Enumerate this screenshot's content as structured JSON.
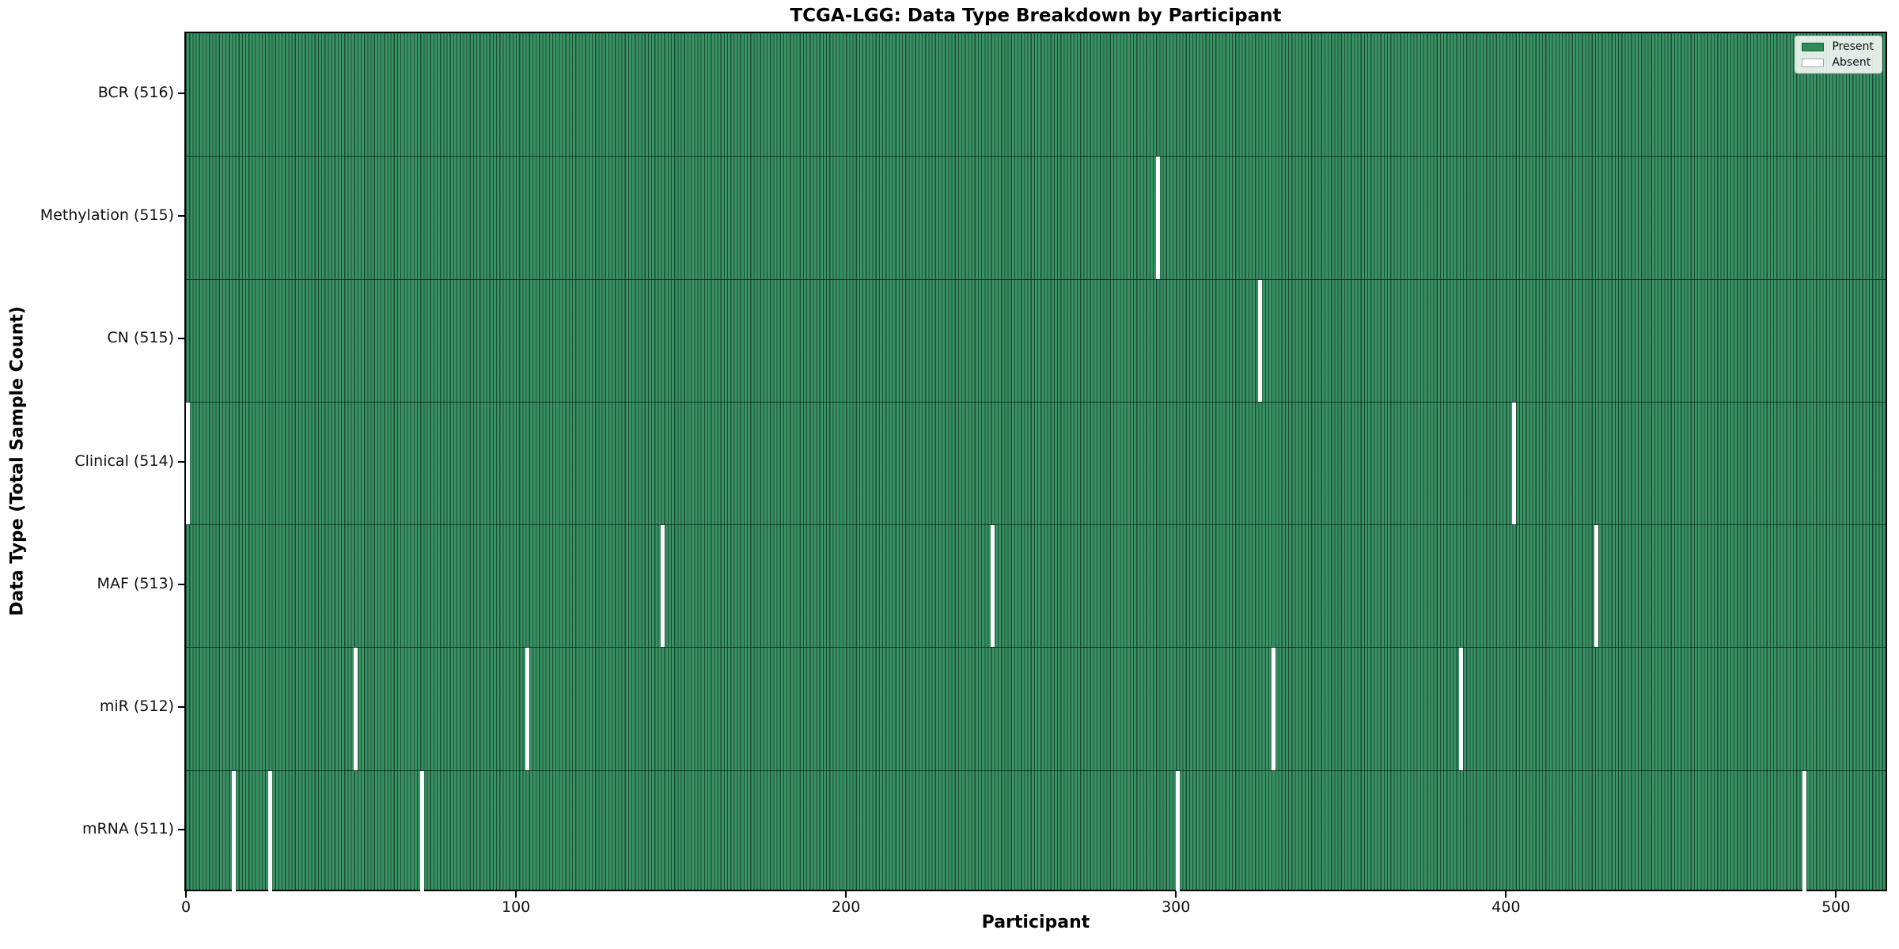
{
  "chart_data": {
    "type": "heatmap",
    "title": "TCGA-LGG: Data Type Breakdown by Participant",
    "xlabel": "Participant",
    "ylabel": "Data Type (Total Sample Count)",
    "n_participants": 516,
    "x_ticks": [
      0,
      100,
      200,
      300,
      400,
      500
    ],
    "x_range": [
      -0.5,
      515.5
    ],
    "grid": false,
    "legend_position": "upper right",
    "rows": [
      {
        "label": "BCR (516)",
        "present_count": 516,
        "absent_participants": []
      },
      {
        "label": "Methylation (515)",
        "present_count": 515,
        "absent_participants": [
          294
        ]
      },
      {
        "label": "CN (515)",
        "present_count": 515,
        "absent_participants": [
          325
        ]
      },
      {
        "label": "Clinical (514)",
        "present_count": 514,
        "absent_participants": [
          0,
          402
        ]
      },
      {
        "label": "MAF (513)",
        "present_count": 513,
        "absent_participants": [
          144,
          244,
          427
        ]
      },
      {
        "label": "miR (512)",
        "present_count": 512,
        "absent_participants": [
          51,
          103,
          329,
          386
        ]
      },
      {
        "label": "mRNA (511)",
        "present_count": 511,
        "absent_participants": [
          14,
          25,
          71,
          300,
          490
        ]
      }
    ],
    "legend": [
      {
        "label": "Present",
        "color": "#2e8b57"
      },
      {
        "label": "Absent",
        "color": "#ffffff"
      }
    ],
    "colors": {
      "present_fill": "#389165",
      "bar_edge": "#1d4c33",
      "absent": "#ffffff",
      "legend_present_swatch": "#2e8b57"
    }
  }
}
